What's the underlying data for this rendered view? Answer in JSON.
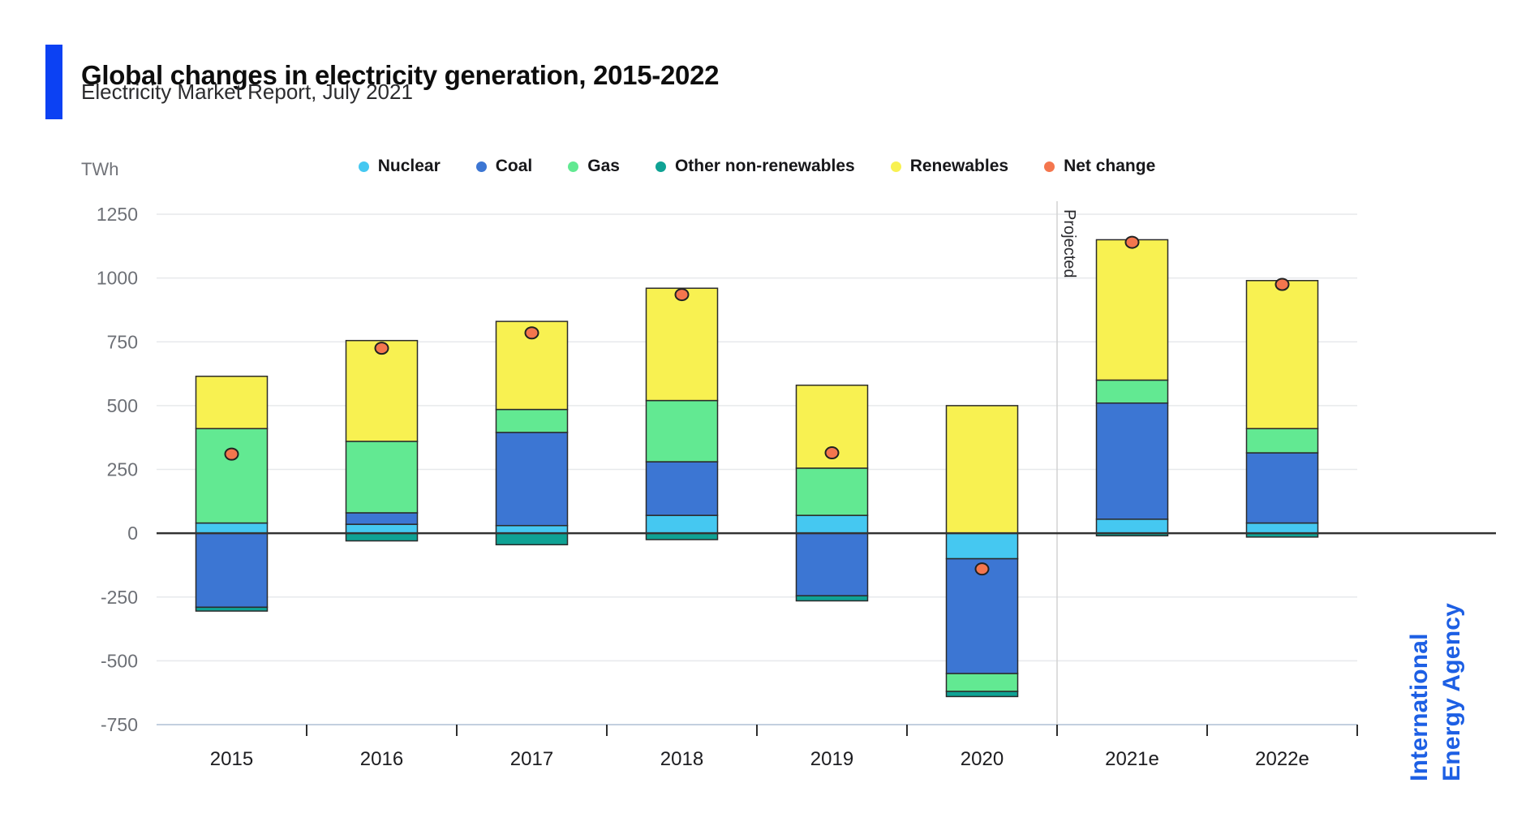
{
  "header": {
    "title": "Global changes in electricity generation, 2015-2022",
    "subtitle": "Electricity Market Report, July 2021"
  },
  "logo": {
    "line1": "International",
    "line2": "Energy Agency"
  },
  "colors": {
    "accent_bar": "#0C41F3",
    "logo_blue": "#1D5FE4"
  },
  "chart_data": {
    "type": "bar",
    "stacked": true,
    "unit_label": "TWh",
    "categories": [
      "2015",
      "2016",
      "2017",
      "2018",
      "2019",
      "2020",
      "2021e",
      "2022e"
    ],
    "series": [
      {
        "name": "Nuclear",
        "color": "#45C8F1",
        "values": [
          40,
          35,
          30,
          70,
          70,
          -100,
          55,
          40
        ]
      },
      {
        "name": "Coal",
        "color": "#3C76D3",
        "values": [
          -290,
          45,
          365,
          210,
          -245,
          -450,
          455,
          275
        ]
      },
      {
        "name": "Gas",
        "color": "#62E992",
        "values": [
          370,
          280,
          90,
          240,
          185,
          -70,
          90,
          95
        ]
      },
      {
        "name": "Other non-renewables",
        "color": "#0FA294",
        "values": [
          -15,
          -30,
          -45,
          -25,
          -20,
          -20,
          -10,
          -15
        ]
      },
      {
        "name": "Renewables",
        "color": "#F8F151",
        "values": [
          205,
          395,
          345,
          440,
          325,
          500,
          550,
          580
        ]
      }
    ],
    "net_series": {
      "name": "Net change",
      "color": "#F4764E",
      "values": [
        310,
        725,
        785,
        935,
        315,
        -140,
        1140,
        975
      ]
    },
    "ylim": [
      -750,
      1250
    ],
    "ytick_step": 250,
    "yticks": [
      1250,
      1000,
      750,
      500,
      250,
      0,
      -250,
      -500,
      -750
    ],
    "grid": true,
    "legend_position": "top",
    "annotation": "Projected",
    "projected_from_category": "2021e",
    "axis_colors": {
      "gridline": "#e7e9ec",
      "zero_line": "#333333",
      "baseline": "#c3cfdf",
      "tick": "#2f2f2f",
      "tick_label": "#6d7076",
      "category_label": "#1d1d20",
      "bar_outline": "#2b2b2b",
      "dot_outline": "#222222",
      "separator": "#d2d2d2",
      "annotation_color": "#2a2a2e"
    }
  }
}
